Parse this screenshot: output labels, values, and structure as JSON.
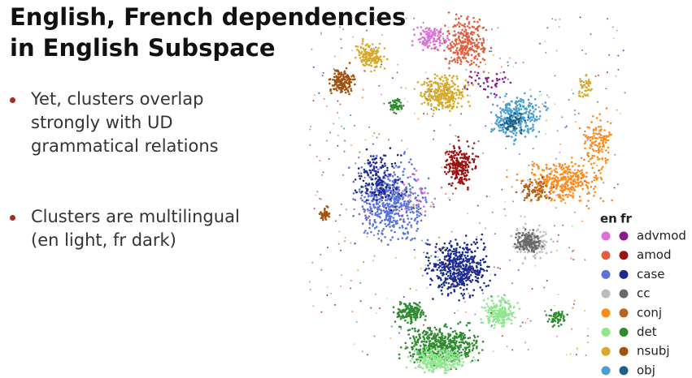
{
  "slide": {
    "title": [
      "English, French dependencies",
      "in English Subspace"
    ],
    "bullets": [
      [
        "Yet, clusters overlap",
        "strongly with UD",
        "grammatical relations"
      ],
      [
        "Clusters are multilingual",
        "(en light, fr dark)"
      ]
    ],
    "legend": {
      "header": [
        "en",
        "fr"
      ],
      "items": [
        {
          "label": "advmod",
          "en_color": "#dc70d6",
          "fr_color": "#8b1a8f"
        },
        {
          "label": "amod",
          "en_color": "#df6040",
          "fr_color": "#9b1313"
        },
        {
          "label": "case",
          "en_color": "#5b74d8",
          "fr_color": "#1b2a8f"
        },
        {
          "label": "cc",
          "en_color": "#bcbcbc",
          "fr_color": "#6a6a6a"
        },
        {
          "label": "conj",
          "en_color": "#ff8a1a",
          "fr_color": "#b5651d"
        },
        {
          "label": "det",
          "en_color": "#8fe88f",
          "fr_color": "#2e8b2e"
        },
        {
          "label": "nsubj",
          "en_color": "#d8aa2a",
          "fr_color": "#a0520f"
        },
        {
          "label": "obj",
          "en_color": "#4a9fd0",
          "fr_color": "#1f5f8a"
        }
      ]
    }
  }
}
